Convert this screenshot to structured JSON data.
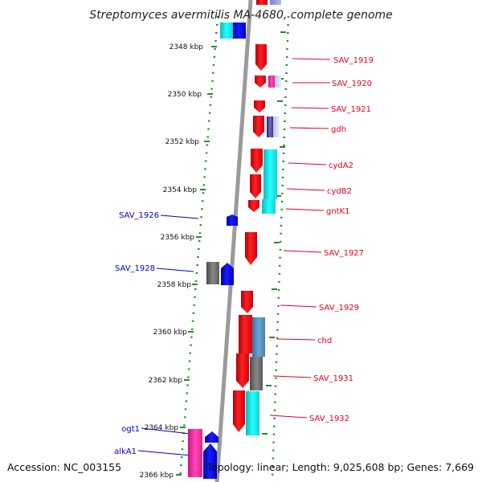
{
  "title": "Streptomyces avermitilis MA-4680, complete genome",
  "accession": "Accession: NC_003155",
  "stats": "Topology: linear; Length: 9,025,608 bp; Genes: 7,669",
  "colors": {
    "forward_label": "#e8001c",
    "reverse_label": "#0000cc",
    "axis": "#999999",
    "tick": "#2a8a2a"
  },
  "scale": {
    "unit": "kbp",
    "ticks": [
      "2348 kbp",
      "2350 kbp",
      "2352 kbp",
      "2354 kbp",
      "2356 kbp",
      "2358 kbp",
      "2360 kbp",
      "2362 kbp",
      "2364 kbp",
      "2366 kbp"
    ]
  },
  "forward_genes": [
    "SAV_1919",
    "SAV_1920",
    "SAV_1921",
    "gdh",
    "cydA2",
    "cydB2",
    "gntK1",
    "SAV_1927",
    "SAV_1929",
    "chd",
    "SAV_1931",
    "SAV_1932"
  ],
  "reverse_genes": [
    "SAV_1926",
    "SAV_1928",
    "ogt1",
    "alkA1"
  ]
}
